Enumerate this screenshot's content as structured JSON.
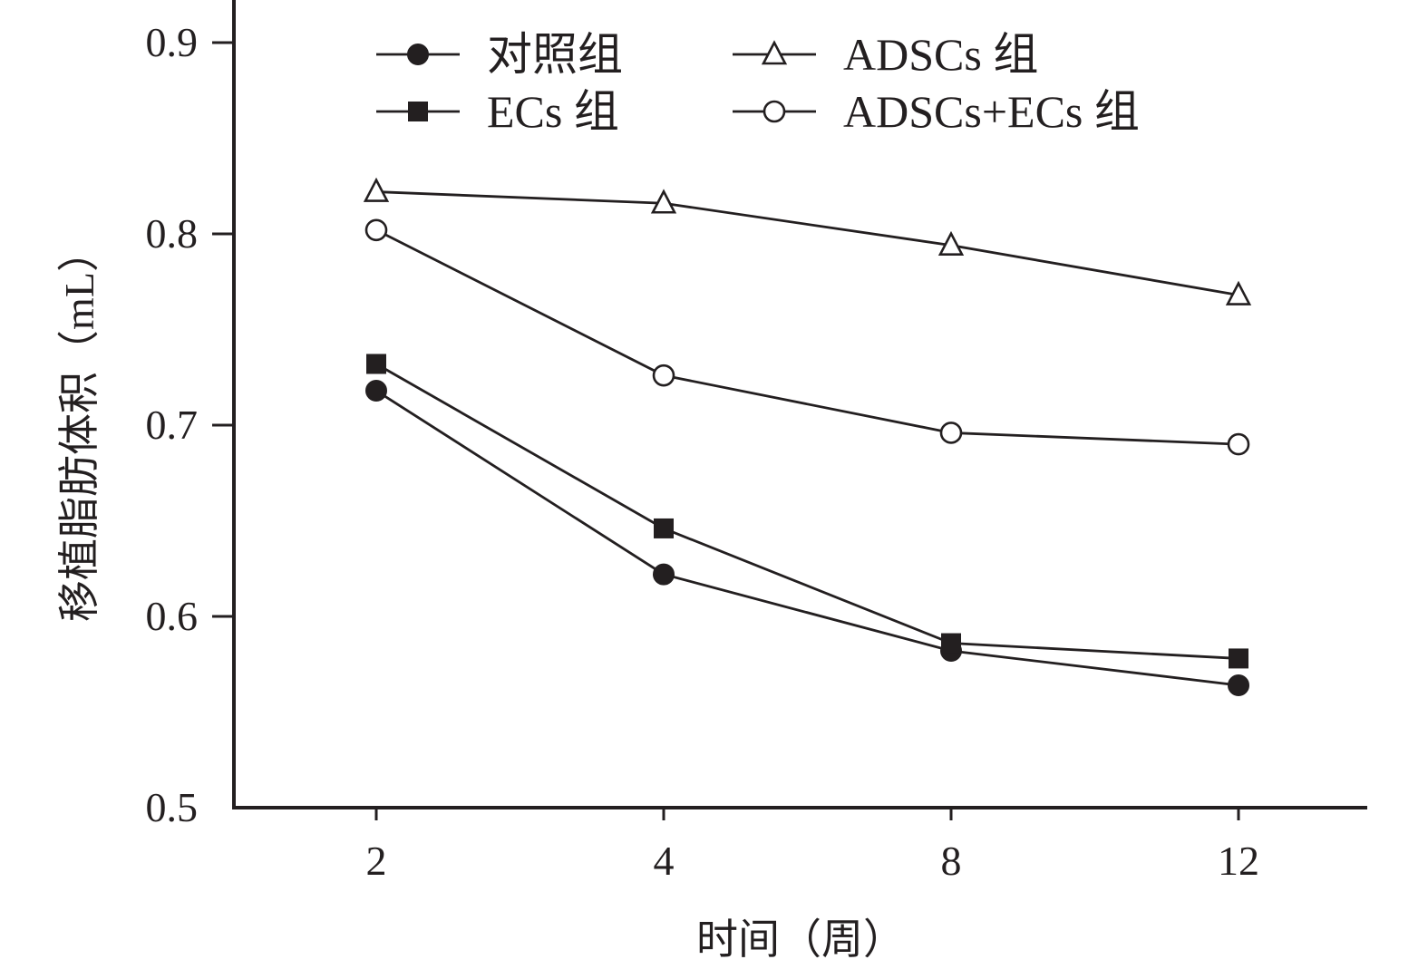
{
  "chart_data": {
    "type": "line",
    "title": "",
    "xlabel": "时间（周）",
    "ylabel": "移植脂肪体积（mL）",
    "categories": [
      "2",
      "4",
      "8",
      "12"
    ],
    "ylim": [
      0.5,
      0.9
    ],
    "yticks": [
      "0.5",
      "0.6",
      "0.7",
      "0.8",
      "0.9"
    ],
    "grid": false,
    "legend_position": "top",
    "series": [
      {
        "name": "对照组",
        "marker": "filled-circle",
        "values": [
          0.718,
          0.622,
          0.582,
          0.564
        ]
      },
      {
        "name": "ECs 组",
        "marker": "filled-square",
        "values": [
          0.732,
          0.646,
          0.586,
          0.578
        ]
      },
      {
        "name": "ADSCs 组",
        "marker": "open-triangle",
        "values": [
          0.822,
          0.816,
          0.794,
          0.768
        ]
      },
      {
        "name": "ADSCs+ECs 组",
        "marker": "open-circle",
        "values": [
          0.802,
          0.726,
          0.696,
          0.69
        ]
      }
    ]
  },
  "colors": {
    "ink": "#231f20",
    "background": "#ffffff"
  }
}
